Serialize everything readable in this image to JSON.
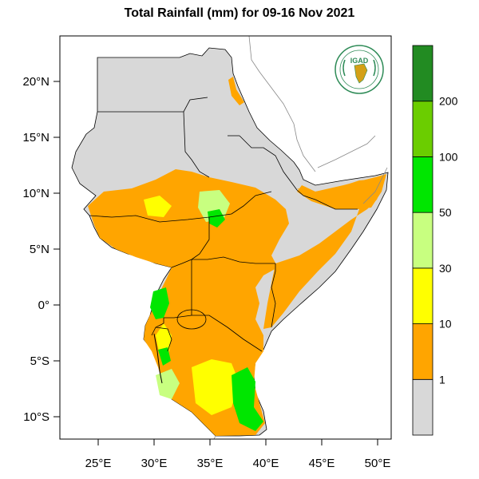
{
  "title": "Total Rainfall (mm) for 09-16 Nov 2021",
  "logo": {
    "text": "IGAD",
    "icon": "igad-logo"
  },
  "map": {
    "region": "Greater Horn of Africa",
    "lon_range": [
      22,
      51.5
    ],
    "lat_range": [
      -12,
      24
    ]
  },
  "axes": {
    "x_ticks": [
      {
        "value": 25,
        "label": "25°E"
      },
      {
        "value": 30,
        "label": "30°E"
      },
      {
        "value": 35,
        "label": "35°E"
      },
      {
        "value": 40,
        "label": "40°E"
      },
      {
        "value": 45,
        "label": "45°E"
      },
      {
        "value": 50,
        "label": "50°E"
      }
    ],
    "y_ticks": [
      {
        "value": 20,
        "label": "20°N"
      },
      {
        "value": 15,
        "label": "15°N"
      },
      {
        "value": 10,
        "label": "10°N"
      },
      {
        "value": 5,
        "label": "5°N"
      },
      {
        "value": 0,
        "label": "0°"
      },
      {
        "value": -5,
        "label": "5°S"
      },
      {
        "value": -10,
        "label": "10°S"
      }
    ]
  },
  "legend": {
    "levels": [
      "1",
      "10",
      "30",
      "50",
      "100",
      "200"
    ],
    "colors": [
      "#d8d8d8",
      "#ffa500",
      "#ffff00",
      "#c8ff80",
      "#00e600",
      "#6bcd00",
      "#228b22"
    ]
  }
}
